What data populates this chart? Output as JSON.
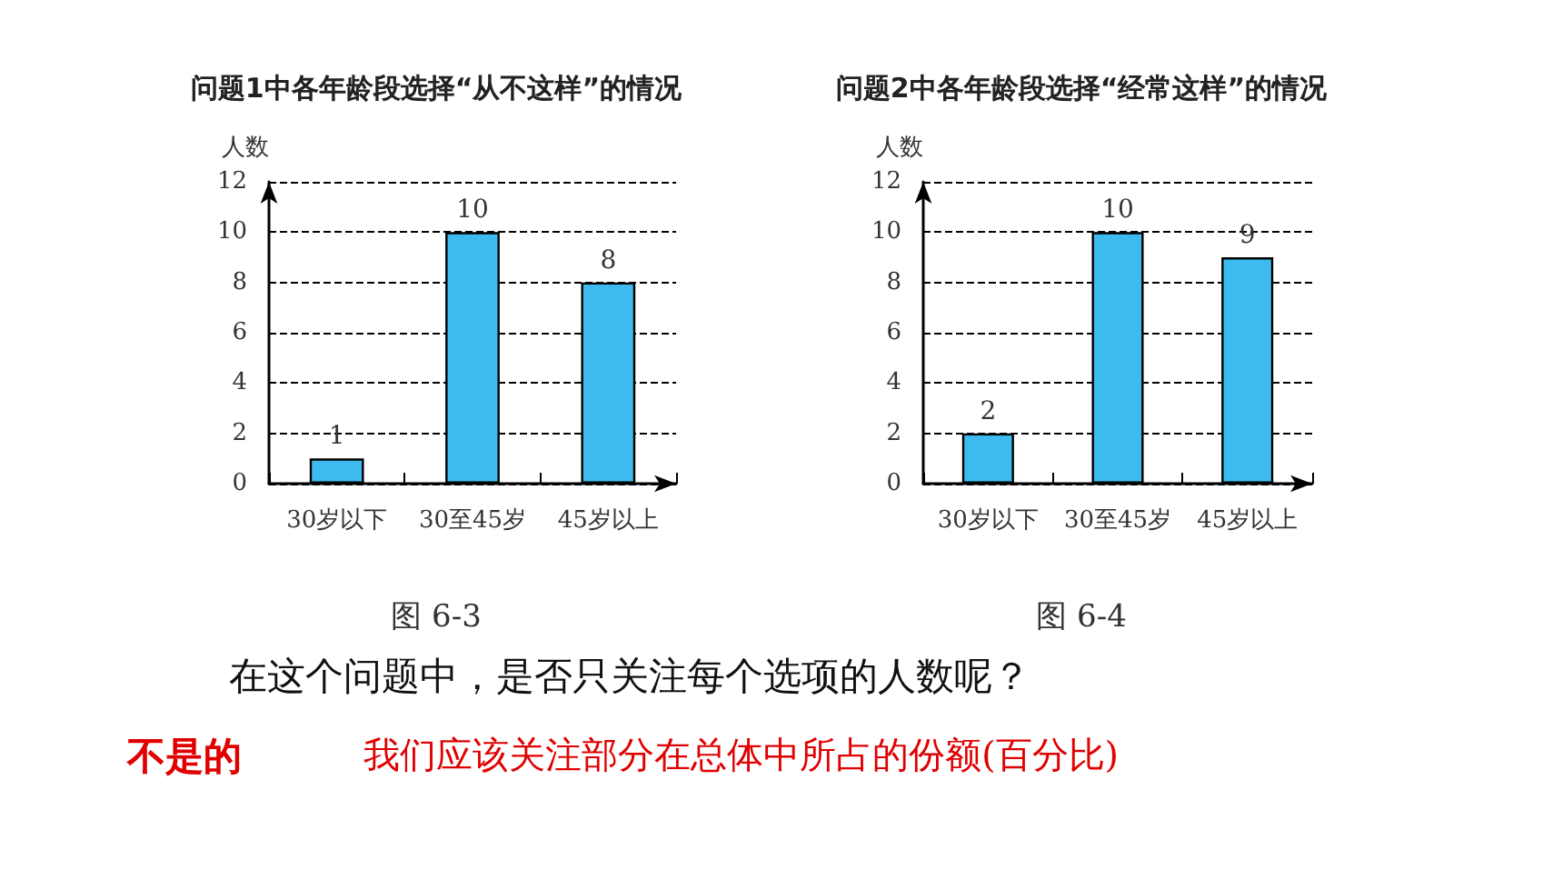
{
  "chart_data": [
    {
      "type": "bar",
      "title": "问题1中各年龄段选择“从不这样”的情况",
      "ylabel": "人数",
      "categories": [
        "30岁以下",
        "30至45岁",
        "45岁以上"
      ],
      "values": [
        1,
        10,
        8
      ],
      "color": "#3dbbee",
      "ylim": [
        0,
        12
      ],
      "yticks": [
        0,
        2,
        4,
        6,
        8,
        10,
        12
      ],
      "grid": "y",
      "data_labels": true,
      "annotations": [
        "图 6-3"
      ]
    },
    {
      "type": "bar",
      "title": "问题2中各年龄段选择“经常这样”的情况",
      "ylabel": "人数",
      "categories": [
        "30岁以下",
        "30至45岁",
        "45岁以上"
      ],
      "values": [
        2,
        10,
        9
      ],
      "color": "#3dbbee",
      "ylim": [
        0,
        12
      ],
      "yticks": [
        0,
        2,
        4,
        6,
        8,
        10,
        12
      ],
      "grid": "y",
      "data_labels": true,
      "annotations": [
        "图 6-4"
      ]
    },
    {
      "type": "other",
      "annotations": [
        "在这个问题中，是否只关注每个选项的人数呢？",
        "不是的",
        "我们应该关注部分在总体中所占的份额(百分比)"
      ]
    }
  ]
}
